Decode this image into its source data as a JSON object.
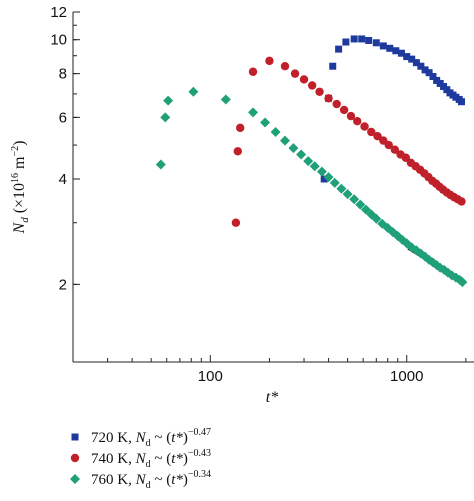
{
  "chart_data": {
    "type": "scatter",
    "x_scale": "log",
    "y_scale": "log",
    "xlim": [
      20,
      2200
    ],
    "ylim": [
      1.2,
      12
    ],
    "xticks": [
      100,
      1000
    ],
    "xtick_labels": [
      "100",
      "1000"
    ],
    "yticks": [
      2,
      4,
      6,
      8,
      10,
      12
    ],
    "ytick_labels": [
      "2",
      "4",
      "6",
      "8",
      "10",
      "12"
    ],
    "xlabel": "t*",
    "ylabel": "N_d (×10^16 m^−2)",
    "grid": false,
    "legend_position": "below",
    "series": [
      {
        "name": "720 K, N_d ~ (t*)^−0.47",
        "marker": "square",
        "color": "#1f3a9e",
        "fit_exponent": -0.47,
        "points": [
          [
            380,
            4.0
          ],
          [
            400,
            6.8
          ],
          [
            420,
            8.4
          ],
          [
            450,
            9.4
          ],
          [
            490,
            9.85
          ],
          [
            540,
            10.05
          ],
          [
            590,
            10.05
          ],
          [
            640,
            9.95
          ],
          [
            700,
            9.8
          ],
          [
            760,
            9.6
          ],
          [
            820,
            9.45
          ],
          [
            880,
            9.3
          ],
          [
            940,
            9.15
          ],
          [
            1000,
            8.95
          ],
          [
            1060,
            8.8
          ],
          [
            1120,
            8.6
          ],
          [
            1180,
            8.4
          ],
          [
            1240,
            8.2
          ],
          [
            1300,
            8.05
          ],
          [
            1360,
            7.85
          ],
          [
            1420,
            7.65
          ],
          [
            1480,
            7.5
          ],
          [
            1540,
            7.35
          ],
          [
            1600,
            7.2
          ],
          [
            1660,
            7.05
          ],
          [
            1720,
            6.95
          ],
          [
            1780,
            6.85
          ],
          [
            1850,
            6.75
          ],
          [
            1900,
            6.65
          ]
        ]
      },
      {
        "name": "740 K, N_d ~ (t*)^−0.43",
        "marker": "circle",
        "color": "#c0202a",
        "fit_exponent": -0.43,
        "points": [
          [
            135,
            3.0
          ],
          [
            138,
            4.8
          ],
          [
            142,
            5.6
          ],
          [
            165,
            8.1
          ],
          [
            200,
            8.7
          ],
          [
            240,
            8.4
          ],
          [
            270,
            8.0
          ],
          [
            300,
            7.7
          ],
          [
            330,
            7.4
          ],
          [
            360,
            7.1
          ],
          [
            400,
            6.8
          ],
          [
            440,
            6.55
          ],
          [
            480,
            6.3
          ],
          [
            520,
            6.05
          ],
          [
            560,
            5.85
          ],
          [
            610,
            5.65
          ],
          [
            660,
            5.45
          ],
          [
            710,
            5.3
          ],
          [
            760,
            5.15
          ],
          [
            810,
            5.0
          ],
          [
            870,
            4.85
          ],
          [
            930,
            4.7
          ],
          [
            990,
            4.6
          ],
          [
            1050,
            4.45
          ],
          [
            1110,
            4.35
          ],
          [
            1170,
            4.25
          ],
          [
            1230,
            4.15
          ],
          [
            1290,
            4.05
          ],
          [
            1350,
            3.95
          ],
          [
            1410,
            3.88
          ],
          [
            1470,
            3.8
          ],
          [
            1530,
            3.73
          ],
          [
            1600,
            3.66
          ],
          [
            1670,
            3.6
          ],
          [
            1740,
            3.55
          ],
          [
            1820,
            3.5
          ],
          [
            1900,
            3.45
          ]
        ]
      },
      {
        "name": "760 K, N_d ~ (t*)^−0.34",
        "marker": "diamond",
        "color": "#20a078",
        "fit_exponent": -0.34,
        "points": [
          [
            56,
            4.4
          ],
          [
            59,
            6.0
          ],
          [
            61,
            6.7
          ],
          [
            82,
            7.1
          ],
          [
            120,
            6.75
          ],
          [
            165,
            6.2
          ],
          [
            190,
            5.8
          ],
          [
            215,
            5.45
          ],
          [
            240,
            5.15
          ],
          [
            265,
            4.9
          ],
          [
            290,
            4.7
          ],
          [
            315,
            4.5
          ],
          [
            340,
            4.35
          ],
          [
            370,
            4.2
          ],
          [
            400,
            4.05
          ],
          [
            430,
            3.9
          ],
          [
            465,
            3.75
          ],
          [
            500,
            3.62
          ],
          [
            540,
            3.5
          ],
          [
            580,
            3.38
          ],
          [
            620,
            3.27
          ],
          [
            660,
            3.17
          ],
          [
            700,
            3.08
          ],
          [
            750,
            2.98
          ],
          [
            800,
            2.9
          ],
          [
            850,
            2.82
          ],
          [
            900,
            2.75
          ],
          [
            950,
            2.68
          ],
          [
            1000,
            2.62
          ],
          [
            1060,
            2.55
          ],
          [
            1120,
            2.5
          ],
          [
            1180,
            2.45
          ],
          [
            1240,
            2.4
          ],
          [
            1300,
            2.35
          ],
          [
            1360,
            2.31
          ],
          [
            1420,
            2.27
          ],
          [
            1480,
            2.23
          ],
          [
            1550,
            2.2
          ],
          [
            1620,
            2.16
          ],
          [
            1700,
            2.12
          ],
          [
            1780,
            2.09
          ],
          [
            1860,
            2.06
          ],
          [
            1920,
            2.03
          ]
        ]
      }
    ]
  }
}
